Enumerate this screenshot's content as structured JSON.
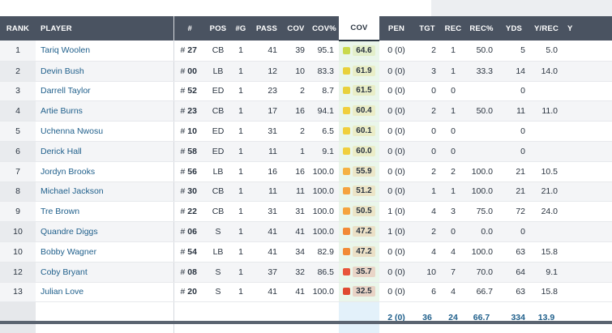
{
  "headers": {
    "rank": "RANK",
    "player": "PLAYER",
    "num": "#",
    "pos": "POS",
    "g": "#G",
    "pass": "PASS",
    "cov": "COV",
    "covp": "COV%",
    "grade": "COV",
    "pen": "PEN",
    "tgt": "TGT",
    "rec": "REC",
    "recp": "REC%",
    "yds": "YDS",
    "yrec": "Y/REC",
    "extra": "Y"
  },
  "rows": [
    {
      "rank": "1",
      "player": "Tariq Woolen",
      "num": "27",
      "pos": "CB",
      "g": "1",
      "pass": "41",
      "cov": "39",
      "covp": "95.1",
      "grade": "64.6",
      "grade_color": "#c9d94a",
      "pen": "0 (0)",
      "tgt": "2",
      "rec": "1",
      "recp": "50.0",
      "yds": "5",
      "yrec": "5.0"
    },
    {
      "rank": "2",
      "player": "Devin Bush",
      "num": "00",
      "pos": "LB",
      "g": "1",
      "pass": "12",
      "cov": "10",
      "covp": "83.3",
      "grade": "61.9",
      "grade_color": "#e8d13a",
      "pen": "0 (0)",
      "tgt": "3",
      "rec": "1",
      "recp": "33.3",
      "yds": "14",
      "yrec": "14.0"
    },
    {
      "rank": "3",
      "player": "Darrell Taylor",
      "num": "52",
      "pos": "ED",
      "g": "1",
      "pass": "23",
      "cov": "2",
      "covp": "8.7",
      "grade": "61.5",
      "grade_color": "#e8d13a",
      "pen": "0 (0)",
      "tgt": "0",
      "rec": "0",
      "recp": "",
      "yds": "0",
      "yrec": ""
    },
    {
      "rank": "4",
      "player": "Artie Burns",
      "num": "23",
      "pos": "CB",
      "g": "1",
      "pass": "17",
      "cov": "16",
      "covp": "94.1",
      "grade": "60.4",
      "grade_color": "#f0cf3c",
      "pen": "0 (0)",
      "tgt": "2",
      "rec": "1",
      "recp": "50.0",
      "yds": "11",
      "yrec": "11.0"
    },
    {
      "rank": "5",
      "player": "Uchenna Nwosu",
      "num": "10",
      "pos": "ED",
      "g": "1",
      "pass": "31",
      "cov": "2",
      "covp": "6.5",
      "grade": "60.1",
      "grade_color": "#f0cf3c",
      "pen": "0 (0)",
      "tgt": "0",
      "rec": "0",
      "recp": "",
      "yds": "0",
      "yrec": ""
    },
    {
      "rank": "6",
      "player": "Derick Hall",
      "num": "58",
      "pos": "ED",
      "g": "1",
      "pass": "11",
      "cov": "1",
      "covp": "9.1",
      "grade": "60.0",
      "grade_color": "#f0cf3c",
      "pen": "0 (0)",
      "tgt": "0",
      "rec": "0",
      "recp": "",
      "yds": "0",
      "yrec": ""
    },
    {
      "rank": "7",
      "player": "Jordyn Brooks",
      "num": "56",
      "pos": "LB",
      "g": "1",
      "pass": "16",
      "cov": "16",
      "covp": "100.0",
      "grade": "55.9",
      "grade_color": "#f5b142",
      "pen": "0 (0)",
      "tgt": "2",
      "rec": "2",
      "recp": "100.0",
      "yds": "21",
      "yrec": "10.5"
    },
    {
      "rank": "8",
      "player": "Michael Jackson",
      "num": "30",
      "pos": "CB",
      "g": "1",
      "pass": "11",
      "cov": "11",
      "covp": "100.0",
      "grade": "51.2",
      "grade_color": "#f5a33e",
      "pen": "0 (0)",
      "tgt": "1",
      "rec": "1",
      "recp": "100.0",
      "yds": "21",
      "yrec": "21.0"
    },
    {
      "rank": "9",
      "player": "Tre Brown",
      "num": "22",
      "pos": "CB",
      "g": "1",
      "pass": "31",
      "cov": "31",
      "covp": "100.0",
      "grade": "50.5",
      "grade_color": "#f5a33e",
      "pen": "1 (0)",
      "tgt": "4",
      "rec": "3",
      "recp": "75.0",
      "yds": "72",
      "yrec": "24.0"
    },
    {
      "rank": "10",
      "player": "Quandre Diggs",
      "num": "06",
      "pos": "S",
      "g": "1",
      "pass": "41",
      "cov": "41",
      "covp": "100.0",
      "grade": "47.2",
      "grade_color": "#f28a35",
      "pen": "1 (0)",
      "tgt": "2",
      "rec": "0",
      "recp": "0.0",
      "yds": "0",
      "yrec": ""
    },
    {
      "rank": "10",
      "player": "Bobby Wagner",
      "num": "54",
      "pos": "LB",
      "g": "1",
      "pass": "41",
      "cov": "34",
      "covp": "82.9",
      "grade": "47.2",
      "grade_color": "#f28a35",
      "pen": "0 (0)",
      "tgt": "4",
      "rec": "4",
      "recp": "100.0",
      "yds": "63",
      "yrec": "15.8"
    },
    {
      "rank": "12",
      "player": "Coby Bryant",
      "num": "08",
      "pos": "S",
      "g": "1",
      "pass": "37",
      "cov": "32",
      "covp": "86.5",
      "grade": "35.7",
      "grade_color": "#e8553a",
      "pen": "0 (0)",
      "tgt": "10",
      "rec": "7",
      "recp": "70.0",
      "yds": "64",
      "yrec": "9.1"
    },
    {
      "rank": "13",
      "player": "Julian Love",
      "num": "20",
      "pos": "S",
      "g": "1",
      "pass": "41",
      "cov": "41",
      "covp": "100.0",
      "grade": "32.5",
      "grade_color": "#e04a30",
      "pen": "0 (0)",
      "tgt": "6",
      "rec": "4",
      "recp": "66.7",
      "yds": "63",
      "yrec": "15.8"
    }
  ],
  "totals": {
    "pen": "2 (0)",
    "tgt": "36",
    "rec": "24",
    "recp": "66.7",
    "yds": "334",
    "yrec": "13.9"
  }
}
